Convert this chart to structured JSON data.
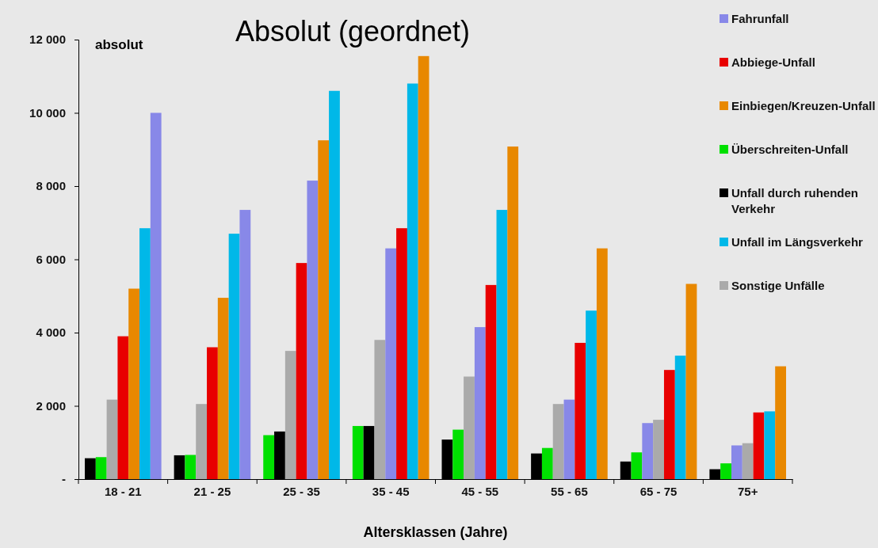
{
  "chart_data": {
    "type": "bar",
    "title": "Absolut (geordnet)",
    "xlabel": "Altersklassen (Jahre)",
    "annotations": [
      "absolut"
    ],
    "categories": [
      "18 - 21",
      "21 - 25",
      "25 - 35",
      "35 - 45",
      "45 - 55",
      "55 -  65",
      "65 - 75",
      "75+"
    ],
    "series": [
      {
        "name": "Fahrunfall",
        "color": "#8888e8",
        "values": [
          10000,
          7350,
          8150,
          6300,
          4150,
          2170,
          1530,
          920
        ]
      },
      {
        "name": "Abbiege-Unfall",
        "color": "#e80000",
        "values": [
          3900,
          3600,
          5900,
          6850,
          5300,
          3720,
          2980,
          1820
        ]
      },
      {
        "name": "Einbiegen/Kreuzen-Unfall",
        "color": "#e88800",
        "values": [
          5200,
          4950,
          9250,
          11550,
          9080,
          6300,
          5330,
          3080
        ]
      },
      {
        "name": "Überschreiten-Unfall",
        "color": "#00e000",
        "values": [
          600,
          660,
          1200,
          1450,
          1350,
          850,
          730,
          430
        ]
      },
      {
        "name": "Unfall durch ruhenden Verkehr",
        "color": "#000000",
        "values": [
          570,
          650,
          1300,
          1450,
          1080,
          700,
          480,
          270
        ]
      },
      {
        "name": "Unfall im Längsverkehr",
        "color": "#00b8e8",
        "values": [
          6850,
          6700,
          10600,
          10800,
          7350,
          4600,
          3370,
          1850
        ]
      },
      {
        "name": "Sonstige Unfälle",
        "color": "#aaaaaa",
        "values": [
          2170,
          2050,
          3500,
          3800,
          2800,
          2050,
          1620,
          980
        ]
      }
    ],
    "ylim": [
      0,
      12000
    ],
    "yticks": [
      {
        "value": 0,
        "label": "-"
      },
      {
        "value": 2000,
        "label": "2 000"
      },
      {
        "value": 4000,
        "label": "4 000"
      },
      {
        "value": 6000,
        "label": "6 000"
      },
      {
        "value": 8000,
        "label": "8 000"
      },
      {
        "value": 10000,
        "label": "10 000"
      },
      {
        "value": 12000,
        "label": "12 000"
      }
    ],
    "grid": false,
    "legend": "right"
  }
}
